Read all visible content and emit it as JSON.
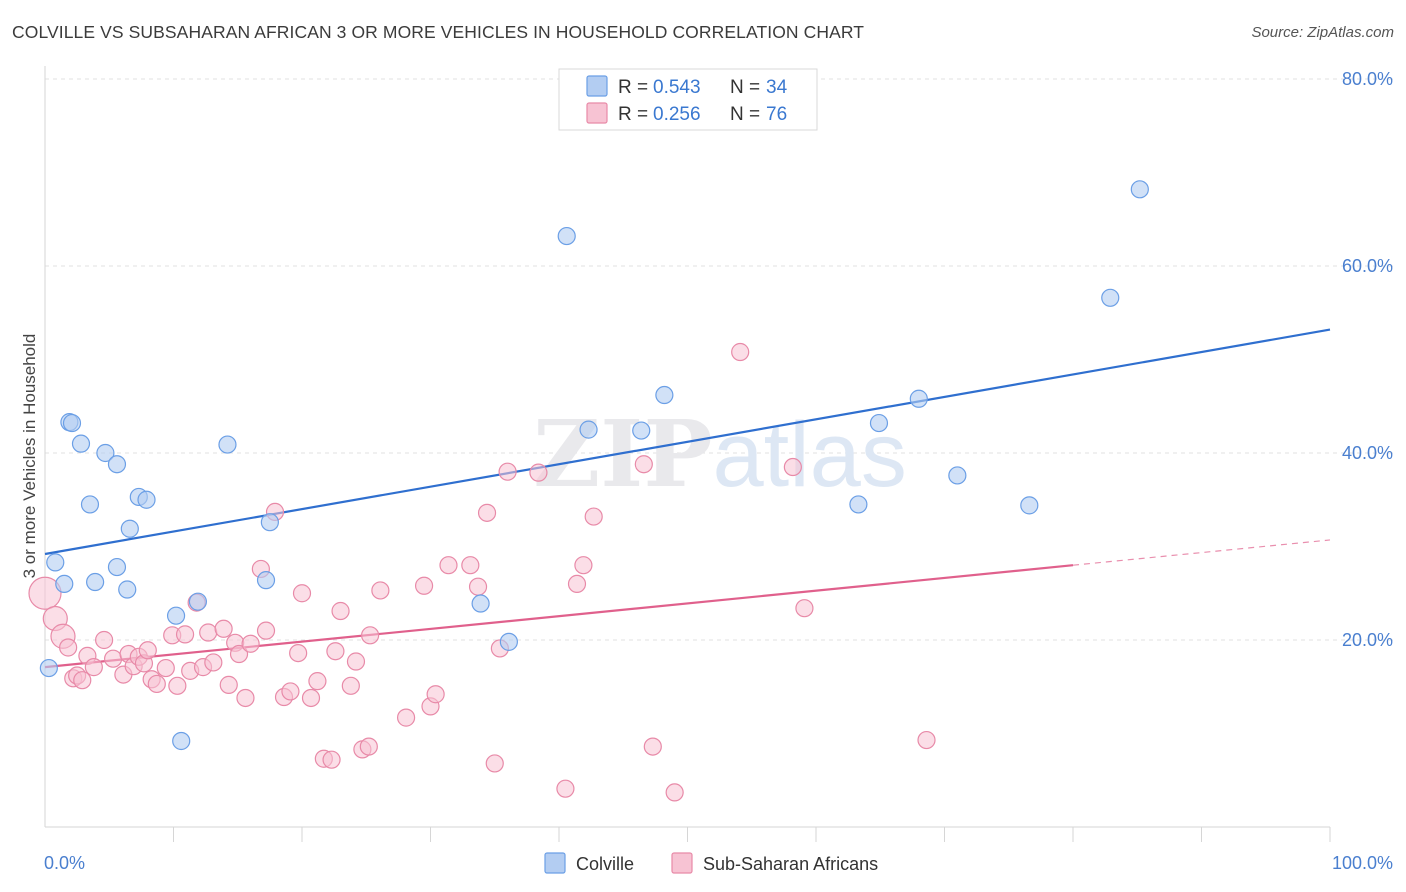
{
  "header": {
    "title": "COLVILLE VS SUBSAHARAN AFRICAN 3 OR MORE VEHICLES IN HOUSEHOLD CORRELATION CHART",
    "source": "Source: ZipAtlas.com"
  },
  "watermark": "ZIPatlas",
  "chart_data": {
    "type": "scatter",
    "ylabel": "3 or more Vehicles in Household",
    "xlim": [
      0,
      100
    ],
    "ylim": [
      0,
      80
    ],
    "x_tick_labels": {
      "min": "0.0%",
      "max": "100.0%"
    },
    "y_ticks": [
      20,
      40,
      60,
      80
    ],
    "y_tick_labels": [
      "20.0%",
      "40.0%",
      "60.0%",
      "80.0%"
    ],
    "grid": true,
    "legend_position": "top-center",
    "colors": {
      "colville": "#6b9fe6",
      "colville_fill": "#b3cdf2",
      "colville_line": "#2f6fcf",
      "subsaharan": "#e88aa8",
      "subsaharan_fill": "#f7c3d3",
      "subsaharan_line": "#e0608c"
    },
    "legend": [
      {
        "r_label": "R = ",
        "r_value": "0.543",
        "n_label": "N = ",
        "n_value": "34"
      },
      {
        "r_label": "R = ",
        "r_value": "0.256",
        "n_label": "N = ",
        "n_value": "76"
      }
    ],
    "series": [
      {
        "name": "Colville",
        "trend": {
          "x": [
            0,
            100
          ],
          "y": [
            29.2,
            53.2
          ]
        },
        "points": [
          [
            0.3,
            17.0
          ],
          [
            0.8,
            28.3
          ],
          [
            1.5,
            26.0
          ],
          [
            1.9,
            43.3
          ],
          [
            2.1,
            43.2
          ],
          [
            2.8,
            41.0
          ],
          [
            3.5,
            34.5
          ],
          [
            3.9,
            26.2
          ],
          [
            4.7,
            40.0
          ],
          [
            5.6,
            38.8
          ],
          [
            5.6,
            27.8
          ],
          [
            6.4,
            25.4
          ],
          [
            6.6,
            31.9
          ],
          [
            7.3,
            35.3
          ],
          [
            7.9,
            35.0
          ],
          [
            10.2,
            22.6
          ],
          [
            10.6,
            9.2
          ],
          [
            11.9,
            24.1
          ],
          [
            14.2,
            40.9
          ],
          [
            17.2,
            26.4
          ],
          [
            17.5,
            32.6
          ],
          [
            33.9,
            23.9
          ],
          [
            36.1,
            19.8
          ],
          [
            40.6,
            63.2
          ],
          [
            42.3,
            42.5
          ],
          [
            46.4,
            42.4
          ],
          [
            48.2,
            46.2
          ],
          [
            63.3,
            34.5
          ],
          [
            64.9,
            43.2
          ],
          [
            68.0,
            45.8
          ],
          [
            71.0,
            37.6
          ],
          [
            76.6,
            34.4
          ],
          [
            82.9,
            56.6
          ],
          [
            85.2,
            68.2
          ]
        ]
      },
      {
        "name": "Sub-Saharan Africans",
        "trend": {
          "x": [
            0,
            80
          ],
          "y": [
            17.1,
            28.0
          ]
        },
        "trend_dashed": {
          "x": [
            80,
            100
          ],
          "y": [
            28.0,
            30.7
          ]
        },
        "points": [
          [
            0.0,
            25.0
          ],
          [
            0.8,
            22.3
          ],
          [
            1.4,
            20.4
          ],
          [
            1.8,
            19.2
          ],
          [
            2.2,
            15.9
          ],
          [
            2.5,
            16.2
          ],
          [
            2.9,
            15.7
          ],
          [
            3.3,
            18.3
          ],
          [
            3.8,
            17.1
          ],
          [
            4.6,
            20.0
          ],
          [
            5.3,
            18.0
          ],
          [
            6.1,
            16.3
          ],
          [
            6.5,
            18.5
          ],
          [
            6.9,
            17.2
          ],
          [
            7.3,
            18.2
          ],
          [
            7.7,
            17.5
          ],
          [
            8.0,
            18.9
          ],
          [
            8.3,
            15.8
          ],
          [
            8.7,
            15.3
          ],
          [
            9.4,
            17.0
          ],
          [
            9.9,
            20.5
          ],
          [
            10.3,
            15.1
          ],
          [
            10.9,
            20.6
          ],
          [
            11.3,
            16.7
          ],
          [
            11.8,
            24.0
          ],
          [
            12.3,
            17.1
          ],
          [
            12.7,
            20.8
          ],
          [
            13.1,
            17.6
          ],
          [
            13.9,
            21.2
          ],
          [
            14.3,
            15.2
          ],
          [
            14.8,
            19.7
          ],
          [
            15.1,
            18.5
          ],
          [
            15.6,
            13.8
          ],
          [
            16.0,
            19.6
          ],
          [
            16.8,
            27.6
          ],
          [
            17.2,
            21.0
          ],
          [
            17.9,
            33.7
          ],
          [
            18.6,
            13.9
          ],
          [
            19.1,
            14.5
          ],
          [
            19.7,
            18.6
          ],
          [
            20.0,
            25.0
          ],
          [
            20.7,
            13.8
          ],
          [
            21.2,
            15.6
          ],
          [
            21.7,
            7.3
          ],
          [
            22.3,
            7.2
          ],
          [
            22.6,
            18.8
          ],
          [
            23.0,
            23.1
          ],
          [
            23.8,
            15.1
          ],
          [
            24.2,
            17.7
          ],
          [
            24.7,
            8.3
          ],
          [
            25.2,
            8.6
          ],
          [
            25.3,
            20.5
          ],
          [
            26.1,
            25.3
          ],
          [
            28.1,
            11.7
          ],
          [
            29.5,
            25.8
          ],
          [
            30.0,
            12.9
          ],
          [
            30.4,
            14.2
          ],
          [
            31.4,
            28.0
          ],
          [
            33.1,
            28.0
          ],
          [
            33.7,
            25.7
          ],
          [
            34.4,
            33.6
          ],
          [
            35.0,
            6.8
          ],
          [
            35.4,
            19.1
          ],
          [
            36.0,
            38.0
          ],
          [
            38.4,
            37.9
          ],
          [
            40.5,
            4.1
          ],
          [
            41.4,
            26.0
          ],
          [
            41.9,
            28.0
          ],
          [
            42.7,
            33.2
          ],
          [
            46.6,
            38.8
          ],
          [
            47.3,
            8.6
          ],
          [
            49.0,
            3.7
          ],
          [
            54.1,
            50.8
          ],
          [
            58.2,
            38.5
          ],
          [
            59.1,
            23.4
          ],
          [
            68.6,
            9.3
          ]
        ]
      }
    ]
  },
  "bottom_legend": {
    "colville_label": "Colville",
    "subsaharan_label": "Sub-Saharan Africans"
  }
}
